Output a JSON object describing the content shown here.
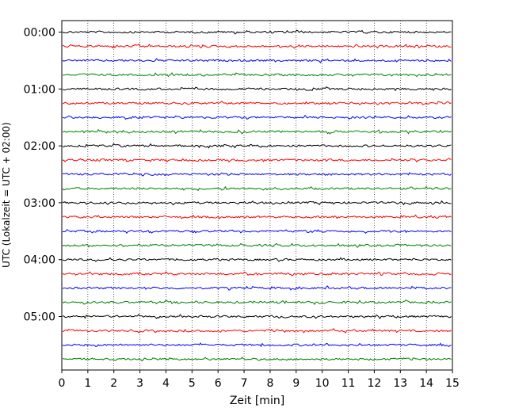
{
  "chart_data": {
    "type": "line",
    "title": "",
    "xlabel": "Zeit  [min]",
    "ylabel": "UTC (Lokalzeit = UTC + 02:00)",
    "xlim": [
      0,
      15
    ],
    "x_ticks": [
      "0",
      "1",
      "2",
      "3",
      "4",
      "5",
      "6",
      "7",
      "8",
      "9",
      "10",
      "11",
      "12",
      "13",
      "14",
      "15"
    ],
    "y_ticks": [
      "00:00",
      "01:00",
      "02:00",
      "03:00",
      "04:00",
      "05:00"
    ],
    "grid": "vertical dotted lines at each minute",
    "row_interval_min": 15,
    "row_colors": [
      "#000000",
      "#ff0000",
      "#0000ff",
      "#008000"
    ],
    "rows": [
      {
        "start": "00:00",
        "color": "#000000"
      },
      {
        "start": "00:15",
        "color": "#ff0000"
      },
      {
        "start": "00:30",
        "color": "#0000ff"
      },
      {
        "start": "00:45",
        "color": "#008000"
      },
      {
        "start": "01:00",
        "color": "#000000"
      },
      {
        "start": "01:15",
        "color": "#ff0000"
      },
      {
        "start": "01:30",
        "color": "#0000ff"
      },
      {
        "start": "01:45",
        "color": "#008000"
      },
      {
        "start": "02:00",
        "color": "#000000"
      },
      {
        "start": "02:15",
        "color": "#ff0000"
      },
      {
        "start": "02:30",
        "color": "#0000ff"
      },
      {
        "start": "02:45",
        "color": "#008000"
      },
      {
        "start": "03:00",
        "color": "#000000"
      },
      {
        "start": "03:15",
        "color": "#ff0000"
      },
      {
        "start": "03:30",
        "color": "#0000ff"
      },
      {
        "start": "03:45",
        "color": "#008000"
      },
      {
        "start": "04:00",
        "color": "#000000"
      },
      {
        "start": "04:15",
        "color": "#ff0000"
      },
      {
        "start": "04:30",
        "color": "#0000ff"
      },
      {
        "start": "04:45",
        "color": "#008000"
      },
      {
        "start": "05:00",
        "color": "#000000"
      },
      {
        "start": "05:15",
        "color": "#ff0000"
      },
      {
        "start": "05:30",
        "color": "#0000ff"
      },
      {
        "start": "05:45",
        "color": "#008000"
      }
    ]
  }
}
